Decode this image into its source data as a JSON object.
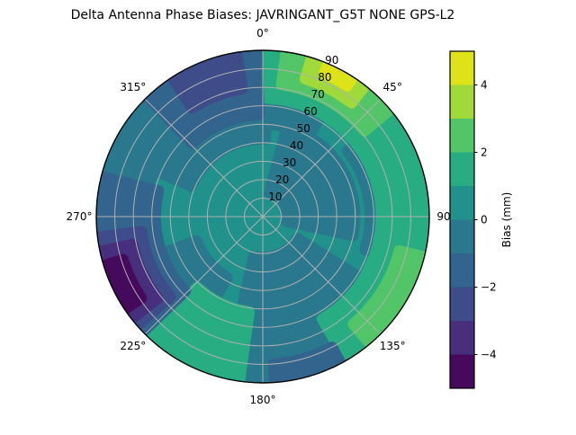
{
  "chart_data": {
    "type": "polar_contour",
    "title": "Delta Antenna Phase Biases: JAVRINGANT_G5T  NONE GPS-L2",
    "projection": "azimuth clockwise from north (0 deg at top), zenith angle 0-90 outward",
    "angular_tick_degrees": [
      0,
      45,
      90,
      135,
      180,
      225,
      270,
      315
    ],
    "angular_tick_labels": [
      "0°",
      "45°",
      "90°",
      "135°",
      "180°",
      "225°",
      "270°",
      "315°"
    ],
    "radial_ticks": [
      10,
      20,
      30,
      40,
      50,
      60,
      70,
      80,
      90
    ],
    "radial_tick_label_angle_deg": 22.5,
    "levels": [
      -5,
      -4,
      -3,
      -2,
      -1,
      0,
      1,
      2,
      3,
      4,
      5
    ],
    "band_colors_low_to_high": [
      "#460a5d",
      "#472f7d",
      "#3e4c8a",
      "#32648e",
      "#2a788e",
      "#21918c",
      "#27ad81",
      "#52c569",
      "#9fda3a",
      "#dde318"
    ],
    "base_band": {
      "bias_mm": "0 to 1",
      "color": "#21918c"
    },
    "grid_color": "#b0b0b0",
    "outline_color": "#000000",
    "regions": [
      {
        "name": "north-rim-teal",
        "azimuth_deg": [
          -28,
          30
        ],
        "zenith_deg": [
          50,
          95
        ],
        "bias_mm": "-1 to 0",
        "color": "#2a788e"
      },
      {
        "name": "northwest-teal",
        "azimuth_deg": [
          293,
          362
        ],
        "zenith_deg": [
          42,
          95
        ],
        "bias_mm": "-1 to 0",
        "color": "#2a788e"
      },
      {
        "name": "east-mid-teal-blob",
        "azimuth_deg": [
          15,
          102
        ],
        "zenith_deg": [
          13,
          50
        ],
        "bias_mm": "-1 to 0",
        "color": "#2a788e"
      },
      {
        "name": "east-upper-rim-teal",
        "azimuth_deg": [
          52,
          108
        ],
        "zenith_deg": [
          58,
          95
        ],
        "bias_mm": "-1 to 0",
        "color": "#2a788e"
      },
      {
        "name": "southeast-teal",
        "azimuth_deg": [
          122,
          193
        ],
        "zenith_deg": [
          22,
          95
        ],
        "bias_mm": "-1 to 0",
        "color": "#2a788e"
      },
      {
        "name": "west-rim-teal",
        "azimuth_deg": [
          250,
          302
        ],
        "zenith_deg": [
          64,
          95
        ],
        "bias_mm": "-1 to 0",
        "color": "#2a788e"
      },
      {
        "name": "southwest-rim-teal",
        "azimuth_deg": [
          210,
          250
        ],
        "zenith_deg": [
          38,
          95
        ],
        "bias_mm": "-1 to 0",
        "color": "#2a788e"
      },
      {
        "name": "north-rim-green",
        "azimuth_deg": [
          2,
          104
        ],
        "zenith_deg": [
          64,
          95
        ],
        "bias_mm": "1 to 2",
        "color": "#27ad81"
      },
      {
        "name": "northeast-rim-green2",
        "azimuth_deg": [
          8,
          50
        ],
        "zenith_deg": [
          72,
          95
        ],
        "bias_mm": "2 to 3",
        "color": "#52c569"
      },
      {
        "name": "northeast-rim-green3",
        "azimuth_deg": [
          17,
          38
        ],
        "zenith_deg": [
          78,
          95
        ],
        "bias_mm": "3 to 4",
        "color": "#9fda3a"
      },
      {
        "name": "northeast-rim-yellow",
        "azimuth_deg": [
          23,
          33
        ],
        "zenith_deg": [
          84,
          95
        ],
        "bias_mm": "4 to 5",
        "color": "#dde318"
      },
      {
        "name": "east-rim-green",
        "azimuth_deg": [
          96,
          150
        ],
        "zenith_deg": [
          64,
          95
        ],
        "bias_mm": "1 to 2",
        "color": "#27ad81"
      },
      {
        "name": "east-rim-green2",
        "azimuth_deg": [
          104,
          140
        ],
        "zenith_deg": [
          76,
          95
        ],
        "bias_mm": "2 to 3",
        "color": "#52c569"
      },
      {
        "name": "south-green-blob",
        "azimuth_deg": [
          188,
          223
        ],
        "zenith_deg": [
          52,
          95
        ],
        "bias_mm": "1 to 2",
        "color": "#27ad81"
      },
      {
        "name": "south-rim-blue",
        "azimuth_deg": [
          152,
          176
        ],
        "zenith_deg": [
          80,
          95
        ],
        "bias_mm": "-2 to -1",
        "color": "#32648e"
      },
      {
        "name": "northwest-rim-blue",
        "azimuth_deg": [
          316,
          358
        ],
        "zenith_deg": [
          55,
          95
        ],
        "bias_mm": "-2 to -1",
        "color": "#32648e"
      },
      {
        "name": "northwest-rim-blue2",
        "azimuth_deg": [
          327,
          351
        ],
        "zenith_deg": [
          70,
          95
        ],
        "bias_mm": "-3 to -2",
        "color": "#3e4c8a"
      },
      {
        "name": "west-rim-blue",
        "azimuth_deg": [
          226,
          284
        ],
        "zenith_deg": [
          58,
          95
        ],
        "bias_mm": "-2 to -1",
        "color": "#32648e"
      },
      {
        "name": "west-rim-blue2",
        "azimuth_deg": [
          229,
          263
        ],
        "zenith_deg": [
          66,
          95
        ],
        "bias_mm": "-3 to -2",
        "color": "#3e4c8a"
      },
      {
        "name": "west-rim-purple",
        "azimuth_deg": [
          232,
          258
        ],
        "zenith_deg": [
          72,
          95
        ],
        "bias_mm": "-4 to -3",
        "color": "#472f7d"
      },
      {
        "name": "west-rim-purple2",
        "azimuth_deg": [
          236,
          253
        ],
        "zenith_deg": [
          79,
          95
        ],
        "bias_mm": "-5 to -4",
        "color": "#460a5d"
      }
    ],
    "colorbar": {
      "label": "Bias (mm)",
      "range": [
        -5,
        5
      ],
      "tick_values": [
        4,
        2,
        0,
        -2,
        -4
      ],
      "tick_labels": [
        "4",
        "2",
        "0",
        "−2",
        "−4"
      ],
      "segment_colors_top_to_bottom": [
        "#dde318",
        "#9fda3a",
        "#52c569",
        "#27ad81",
        "#21918c",
        "#2a788e",
        "#32648e",
        "#3e4c8a",
        "#472f7d",
        "#460a5d"
      ]
    }
  }
}
